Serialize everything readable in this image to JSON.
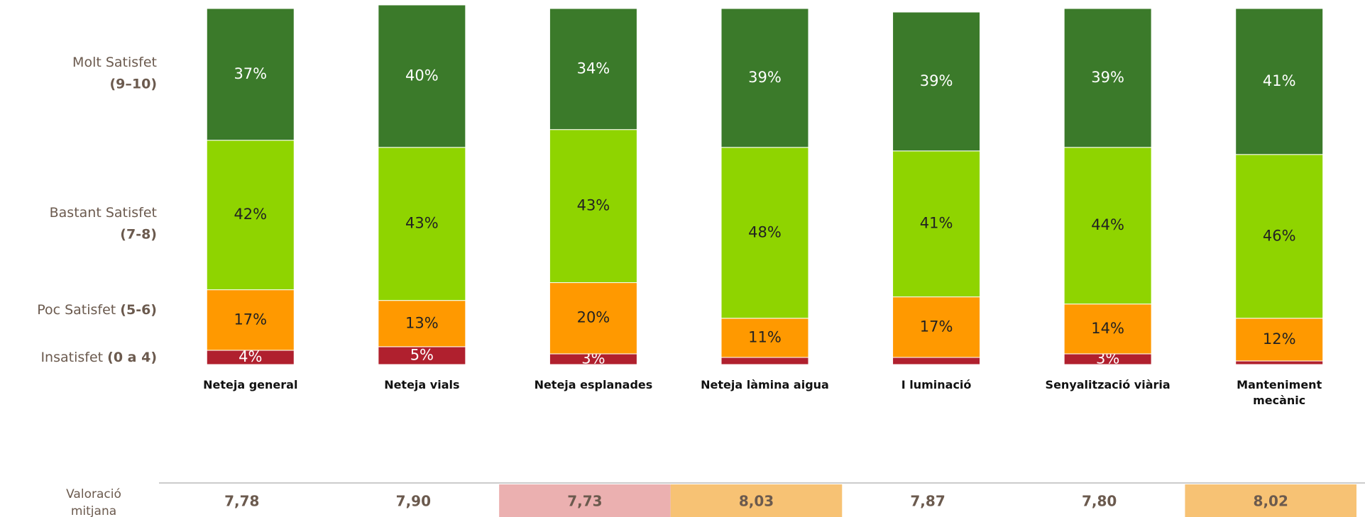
{
  "chart_data": {
    "type": "stacked_bar",
    "categories": [
      "Neteja general",
      "Neteja vials",
      "Neteja esplanades",
      "Neteja làmina aigua",
      "I luminació",
      "Senyalització viària",
      "Manteniment mecànic"
    ],
    "ylim": [
      0,
      100
    ],
    "series": [
      {
        "name": "Insatisfet",
        "range": "(0 a 4)",
        "color": "#b0202e",
        "label_color": "#ffffff",
        "values": [
          4,
          5,
          3,
          2,
          2,
          3,
          1
        ],
        "value_labels": [
          "4%",
          "5%",
          "3%",
          null,
          null,
          "3%",
          null
        ]
      },
      {
        "name": "Poc Satisfet",
        "range": "(5-6)",
        "color": "#ff9900",
        "label_color": "#222222",
        "values": [
          17,
          13,
          20,
          11,
          17,
          14,
          12
        ],
        "value_labels": [
          "17%",
          "13%",
          "20%",
          "11%",
          "17%",
          "14%",
          "12%"
        ]
      },
      {
        "name": "Bastant Satisfet",
        "range": "(7-8)",
        "color": "#8fd400",
        "label_color": "#222222",
        "values": [
          42,
          43,
          43,
          48,
          41,
          44,
          46
        ],
        "value_labels": [
          "42%",
          "43%",
          "43%",
          "48%",
          "41%",
          "44%",
          "46%"
        ]
      },
      {
        "name": "Molt Satisfet",
        "range": "(9–10)",
        "color": "#3b7a2a",
        "label_color": "#ffffff",
        "values": [
          37,
          40,
          34,
          39,
          39,
          39,
          41
        ],
        "value_labels": [
          "37%",
          "40%",
          "34%",
          "39%",
          "39%",
          "39%",
          "41%"
        ]
      }
    ],
    "average": {
      "title": "Valoració mitjana",
      "values": [
        7.78,
        7.9,
        7.73,
        8.03,
        7.87,
        7.8,
        8.02
      ],
      "value_labels": [
        "7,78",
        "7,90",
        "7,73",
        "8,03",
        "7,87",
        "7,80",
        "8,02"
      ],
      "colors": [
        null,
        null,
        "#ebb0b0",
        "#f7c274",
        null,
        null,
        "#f7c274"
      ]
    }
  }
}
